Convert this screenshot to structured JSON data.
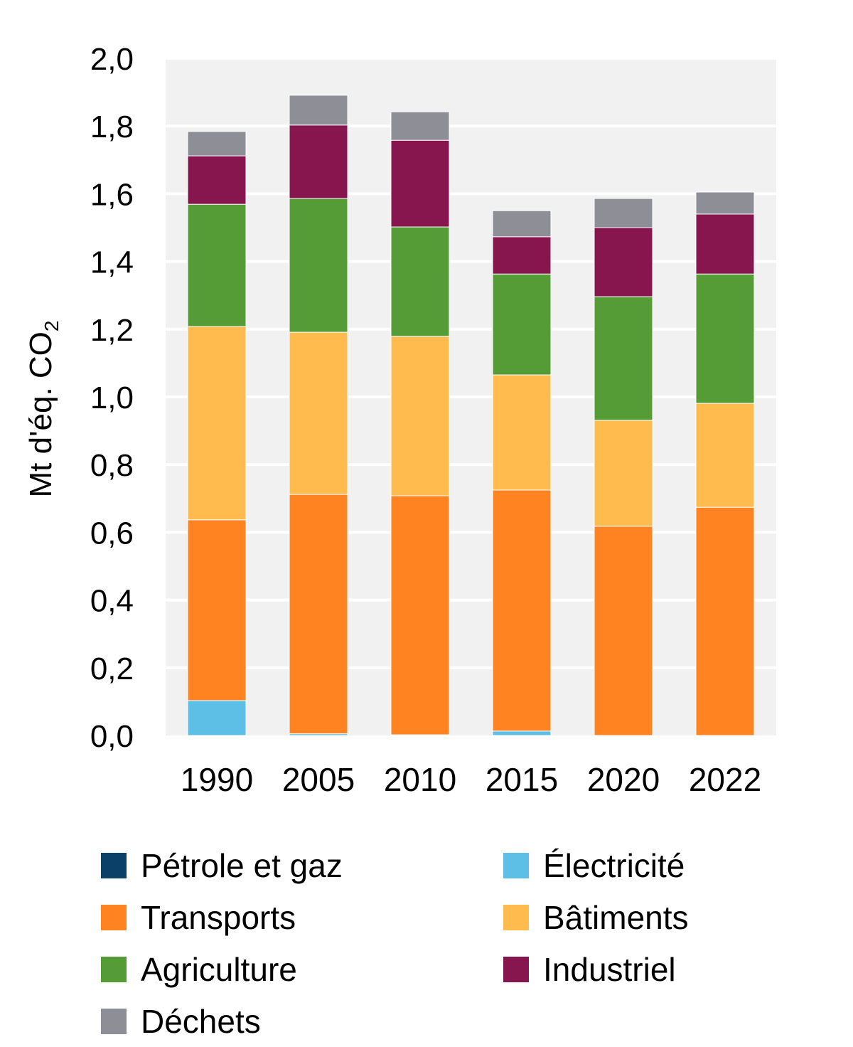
{
  "chart_data": {
    "type": "bar",
    "stacked": true,
    "ylabel": "Mt d'éq. CO",
    "ylabel_sub": "2",
    "ylim": [
      0,
      2.0
    ],
    "yticks": [
      "0,0",
      "0,2",
      "0,4",
      "0,6",
      "0,8",
      "1,0",
      "1,2",
      "1,4",
      "1,6",
      "1,8",
      "2,0"
    ],
    "ytick_values": [
      0,
      0.2,
      0.4,
      0.6,
      0.8,
      1.0,
      1.2,
      1.4,
      1.6,
      1.8,
      2.0
    ],
    "grid": true,
    "legend_position": "bottom",
    "categories": [
      "1990",
      "2005",
      "2010",
      "2015",
      "2020",
      "2022"
    ],
    "series": [
      {
        "name": "Pétrole et gaz",
        "color": "#0b4168",
        "values": [
          0,
          0,
          0,
          0,
          0,
          0
        ]
      },
      {
        "name": "Électricité",
        "color": "#5dbfe6",
        "values": [
          0.103,
          0.005,
          0.002,
          0.013,
          0,
          0
        ]
      },
      {
        "name": "Transports",
        "color": "#ff8320",
        "values": [
          0.534,
          0.707,
          0.706,
          0.712,
          0.618,
          0.674
        ]
      },
      {
        "name": "Bâtiments",
        "color": "#ffbb4e",
        "values": [
          0.571,
          0.479,
          0.471,
          0.34,
          0.313,
          0.307
        ]
      },
      {
        "name": "Agriculture",
        "color": "#559c37",
        "values": [
          0.361,
          0.395,
          0.323,
          0.298,
          0.365,
          0.382
        ]
      },
      {
        "name": "Industriel",
        "color": "#87164f",
        "values": [
          0.143,
          0.217,
          0.256,
          0.11,
          0.204,
          0.177
        ]
      },
      {
        "name": "Déchets",
        "color": "#8e8e96",
        "values": [
          0.072,
          0.088,
          0.084,
          0.077,
          0.086,
          0.065
        ]
      }
    ]
  }
}
